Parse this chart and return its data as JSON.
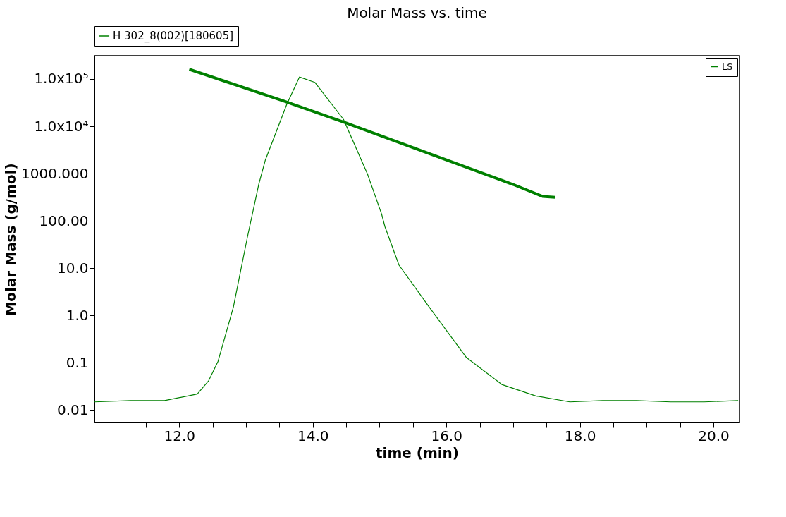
{
  "chart_data": {
    "type": "line",
    "title": "Molar Mass vs. time",
    "xlabel": "time (min)",
    "ylabel": "Molar Mass (g/mol)",
    "log": "y",
    "grid": false,
    "legend": "top",
    "marker": "none",
    "xlim": [
      10.73,
      20.39
    ],
    "ylim": [
      0.0055,
      310000
    ],
    "xticks": [
      {
        "value": 11.0,
        "label": null
      },
      {
        "value": 11.5,
        "label": null
      },
      {
        "value": 12.0,
        "label": "12.0"
      },
      {
        "value": 12.5,
        "label": null
      },
      {
        "value": 13.0,
        "label": null
      },
      {
        "value": 13.5,
        "label": null
      },
      {
        "value": 14.0,
        "label": "14.0"
      },
      {
        "value": 14.5,
        "label": null
      },
      {
        "value": 15.0,
        "label": null
      },
      {
        "value": 15.5,
        "label": null
      },
      {
        "value": 16.0,
        "label": "16.0"
      },
      {
        "value": 16.5,
        "label": null
      },
      {
        "value": 17.0,
        "label": null
      },
      {
        "value": 17.5,
        "label": null
      },
      {
        "value": 18.0,
        "label": "18.0"
      },
      {
        "value": 18.5,
        "label": null
      },
      {
        "value": 19.0,
        "label": null
      },
      {
        "value": 19.5,
        "label": null
      },
      {
        "value": 20.0,
        "label": "20.0"
      }
    ],
    "yticks": [
      {
        "value": 0.01,
        "label": "0.01"
      },
      {
        "value": 0.1,
        "label": "0.1"
      },
      {
        "value": 1,
        "label": "1.0"
      },
      {
        "value": 10,
        "label": "10.0"
      },
      {
        "value": 100,
        "label": "100.00"
      },
      {
        "value": 1000,
        "label": "1000.000"
      },
      {
        "value": 10000,
        "label": "1.0x10⁴"
      },
      {
        "value": 100000,
        "label": "1.0x10⁵"
      }
    ],
    "series": [
      {
        "name": "H 302_8(002)[180605]",
        "color": "#008000",
        "x": [
          12.15,
          13.57,
          14.5,
          17.0,
          17.44,
          17.63
        ],
        "values": [
          160000,
          34000,
          11700,
          590,
          330,
          316
        ]
      },
      {
        "name": "LS",
        "color": "#008000",
        "x": [
          10.73,
          11.27,
          11.78,
          12.27,
          12.44,
          12.58,
          12.81,
          13.02,
          13.19,
          13.29,
          13.61,
          13.8,
          14.03,
          14.46,
          14.82,
          15.03,
          15.08,
          15.29,
          15.73,
          16.3,
          16.83,
          17.34,
          17.85,
          18.34,
          18.85,
          19.36,
          19.86,
          20.37
        ],
        "values": [
          0.015,
          0.016,
          0.016,
          0.022,
          0.042,
          0.107,
          1.5,
          45,
          590,
          1950,
          29000,
          110000,
          85000,
          14000,
          970,
          140,
          76,
          11.7,
          1.6,
          0.13,
          0.035,
          0.02,
          0.015,
          0.016,
          0.016,
          0.015,
          0.015,
          0.016
        ]
      }
    ]
  }
}
